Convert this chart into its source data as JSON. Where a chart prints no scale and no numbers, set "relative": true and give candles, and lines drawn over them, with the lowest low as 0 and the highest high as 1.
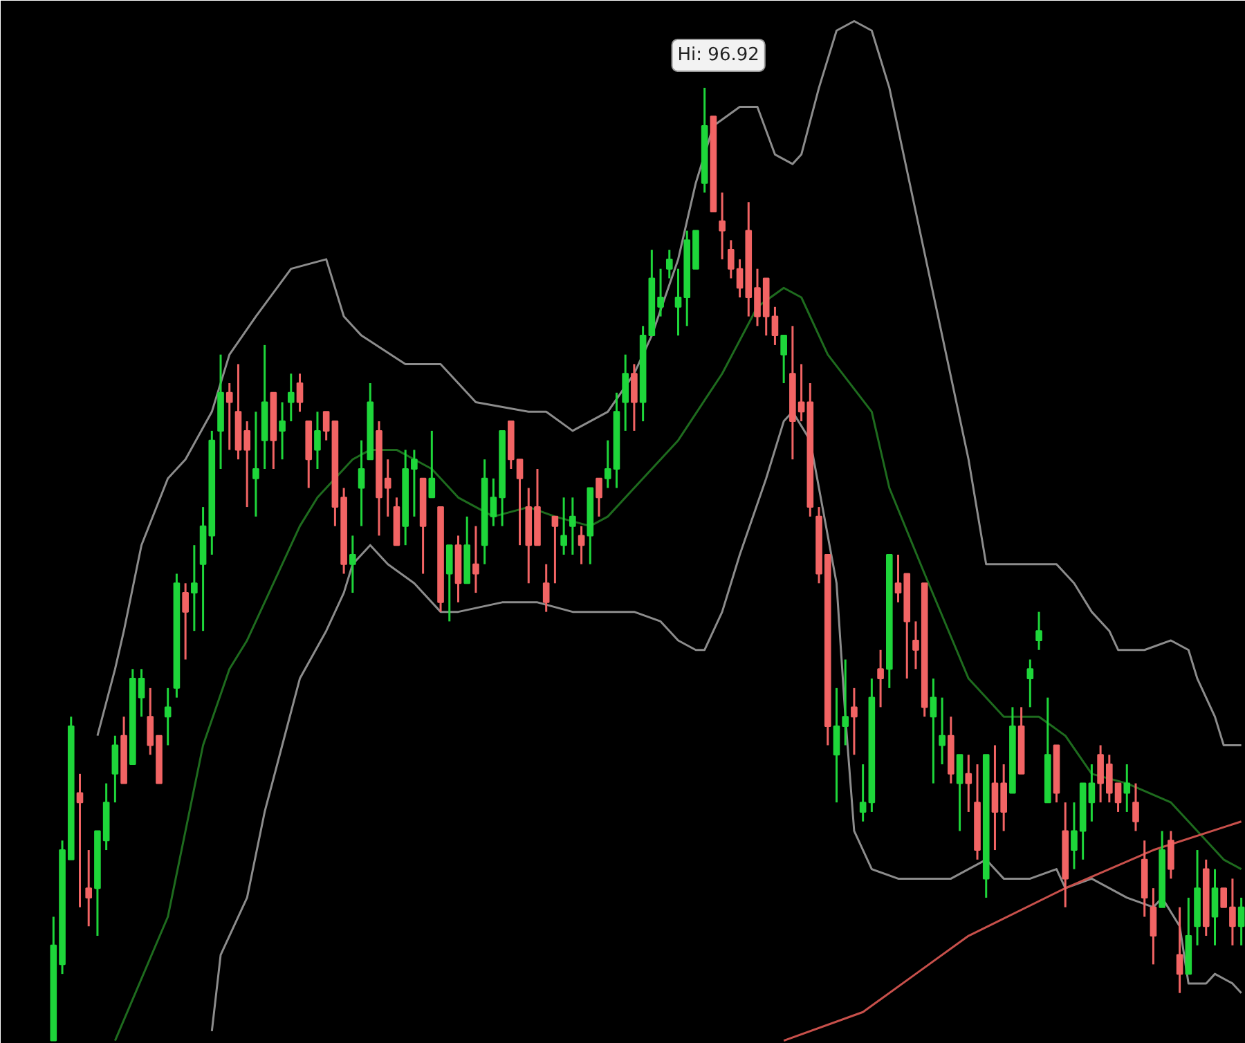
{
  "chart_data": {
    "type": "candlestick",
    "relative": true,
    "categories": [
      null,
      null,
      null,
      null,
      null,
      null,
      null,
      null,
      null,
      null,
      null,
      null,
      null,
      null,
      null,
      null,
      null,
      null,
      null,
      null,
      null,
      null,
      null,
      null,
      null,
      null,
      null,
      null,
      null,
      null,
      null,
      null,
      null,
      null,
      null,
      null,
      null,
      null,
      null,
      null,
      null,
      null,
      null,
      null,
      null,
      null,
      null,
      null,
      null,
      null,
      null,
      null,
      null,
      null,
      null,
      null,
      null,
      null,
      null,
      null,
      null,
      null,
      null,
      null,
      null,
      null,
      null,
      null,
      null,
      null,
      null,
      null,
      null,
      null,
      null,
      null,
      null,
      null,
      null,
      null,
      null,
      null,
      null,
      null,
      null,
      null,
      null,
      null,
      null,
      null,
      null,
      null,
      null,
      null,
      null,
      null,
      null,
      null,
      null,
      null,
      null,
      null,
      null,
      null,
      null,
      null,
      null,
      null,
      null,
      null,
      null,
      null,
      null,
      null,
      null,
      null,
      null,
      null,
      null,
      null,
      null,
      null,
      null,
      null,
      null,
      null,
      null,
      null,
      null,
      null,
      null,
      null,
      null,
      null,
      null,
      null
    ],
    "colors": [
      "#1ed63a",
      "#1ed63a",
      "#1ed63a",
      "#f26464",
      "#f26464",
      "#1ed63a",
      "#1ed63a",
      "#1ed63a",
      "#f26464",
      "#1ed63a",
      "#1ed63a",
      "#f26464",
      "#f26464",
      "#1ed63a",
      "#1ed63a",
      "#f26464",
      "#1ed63a",
      "#1ed63a",
      "#1ed63a",
      "#1ed63a",
      "#f26464",
      "#f26464",
      "#f26464",
      "#1ed63a",
      "#1ed63a",
      "#f26464",
      "#1ed63a",
      "#1ed63a",
      "#f26464",
      "#f26464",
      "#1ed63a",
      "#f26464",
      "#f26464",
      "#f26464",
      "#1ed63a",
      "#1ed63a",
      "#1ed63a",
      "#f26464",
      "#f26464",
      "#f26464",
      "#1ed63a",
      "#1ed63a",
      "#f26464",
      "#1ed63a",
      "#f26464",
      "#1ed63a",
      "#f26464",
      "#1ed63a",
      "#f26464",
      "#1ed63a",
      "#1ed63a",
      "#1ed63a",
      "#f26464",
      "#f26464",
      "#f26464",
      "#f26464",
      "#f26464",
      "#f26464",
      "#1ed63a",
      "#1ed63a",
      "#f26464",
      "#1ed63a",
      "#f26464",
      "#1ed63a",
      "#1ed63a",
      "#1ed63a",
      "#f26464",
      "#1ed63a",
      "#1ed63a",
      "#1ed63a",
      "#1ed63a",
      "#1ed63a",
      "#1ed63a",
      "#1ed63a",
      "#1ed63a",
      "#f26464",
      "#f26464",
      "#f26464",
      "#f26464",
      "#f26464",
      "#f26464",
      "#f26464",
      "#f26464",
      "#1ed63a",
      "#f26464",
      "#f26464",
      "#f26464",
      "#f26464",
      "#f26464",
      "#1ed63a",
      "#1ed63a",
      "#f26464",
      "#1ed63a",
      "#1ed63a",
      "#f26464",
      "#1ed63a",
      "#f26464",
      "#f26464",
      "#f26464",
      "#f26464",
      "#1ed63a",
      "#1ed63a",
      "#f26464",
      "#1ed63a",
      "#f26464",
      "#f26464",
      "#1ed63a",
      "#f26464",
      "#f26464",
      "#1ed63a",
      "#f26464",
      "#1ed63a",
      "#1ed63a",
      "#1ed63a",
      "#f26464",
      "#f26464",
      "#1ed63a",
      "#1ed63a",
      "#1ed63a",
      "#f26464",
      "#f26464",
      "#f26464",
      "#1ed63a",
      "#f26464",
      "#f26464",
      "#f26464",
      "#1ed63a",
      "#f26464",
      "#f26464",
      "#1ed63a",
      "#1ed63a",
      "#f26464",
      "#1ed63a",
      "#f26464",
      "#f26464",
      "#1ed63a"
    ],
    "ohlc": [
      [
        0,
        0.13,
        0,
        0.1
      ],
      [
        0.08,
        0.21,
        0.07,
        0.2
      ],
      [
        0.19,
        0.34,
        0.19,
        0.33
      ],
      [
        0.26,
        0.28,
        0.14,
        0.25
      ],
      [
        0.16,
        0.2,
        0.12,
        0.15
      ],
      [
        0.16,
        0.22,
        0.11,
        0.22
      ],
      [
        0.21,
        0.27,
        0.2,
        0.25
      ],
      [
        0.28,
        0.32,
        0.25,
        0.31
      ],
      [
        0.32,
        0.34,
        0.27,
        0.27
      ],
      [
        0.29,
        0.39,
        0.29,
        0.38
      ],
      [
        0.36,
        0.39,
        0.34,
        0.38
      ],
      [
        0.34,
        0.37,
        0.3,
        0.31
      ],
      [
        0.32,
        0.32,
        0.27,
        0.27
      ],
      [
        0.34,
        0.37,
        0.31,
        0.35
      ],
      [
        0.37,
        0.49,
        0.36,
        0.48
      ],
      [
        0.47,
        0.48,
        0.4,
        0.45
      ],
      [
        0.47,
        0.52,
        0.43,
        0.48
      ],
      [
        0.5,
        0.56,
        0.43,
        0.54
      ],
      [
        0.53,
        0.64,
        0.51,
        0.63
      ],
      [
        0.64,
        0.72,
        0.6,
        0.68
      ],
      [
        0.68,
        0.69,
        0.62,
        0.67
      ],
      [
        0.66,
        0.71,
        0.61,
        0.62
      ],
      [
        0.64,
        0.65,
        0.56,
        0.62
      ],
      [
        0.59,
        0.66,
        0.55,
        0.6
      ],
      [
        0.63,
        0.73,
        0.6,
        0.67
      ],
      [
        0.68,
        0.68,
        0.6,
        0.63
      ],
      [
        0.64,
        0.67,
        0.61,
        0.65
      ],
      [
        0.67,
        0.7,
        0.65,
        0.68
      ],
      [
        0.69,
        0.7,
        0.66,
        0.67
      ],
      [
        0.65,
        0.65,
        0.58,
        0.61
      ],
      [
        0.62,
        0.66,
        0.6,
        0.64
      ],
      [
        0.66,
        0.66,
        0.63,
        0.64
      ],
      [
        0.65,
        0.65,
        0.54,
        0.56
      ],
      [
        0.57,
        0.58,
        0.49,
        0.5
      ],
      [
        0.5,
        0.53,
        0.47,
        0.51
      ],
      [
        0.58,
        0.63,
        0.54,
        0.6
      ],
      [
        0.61,
        0.69,
        0.61,
        0.67
      ],
      [
        0.64,
        0.65,
        0.53,
        0.57
      ],
      [
        0.59,
        0.61,
        0.55,
        0.58
      ],
      [
        0.56,
        0.57,
        0.52,
        0.52
      ],
      [
        0.54,
        0.62,
        0.52,
        0.6
      ],
      [
        0.6,
        0.62,
        0.55,
        0.61
      ],
      [
        0.59,
        0.59,
        0.49,
        0.54
      ],
      [
        0.57,
        0.64,
        0.57,
        0.59
      ],
      [
        0.56,
        0.56,
        0.45,
        0.46
      ],
      [
        0.49,
        0.52,
        0.44,
        0.52
      ],
      [
        0.52,
        0.53,
        0.46,
        0.48
      ],
      [
        0.48,
        0.55,
        0.48,
        0.52
      ],
      [
        0.5,
        0.54,
        0.47,
        0.49
      ],
      [
        0.52,
        0.61,
        0.5,
        0.59
      ],
      [
        0.55,
        0.59,
        0.54,
        0.57
      ],
      [
        0.57,
        0.64,
        0.54,
        0.64
      ],
      [
        0.65,
        0.65,
        0.6,
        0.61
      ],
      [
        0.61,
        0.61,
        0.52,
        0.59
      ],
      [
        0.56,
        0.58,
        0.48,
        0.52
      ],
      [
        0.56,
        0.6,
        0.52,
        0.52
      ],
      [
        0.48,
        0.5,
        0.45,
        0.46
      ],
      [
        0.55,
        0.55,
        0.48,
        0.54
      ],
      [
        0.52,
        0.57,
        0.51,
        0.53
      ],
      [
        0.54,
        0.57,
        0.51,
        0.55
      ],
      [
        0.53,
        0.54,
        0.5,
        0.52
      ],
      [
        0.53,
        0.58,
        0.5,
        0.58
      ],
      [
        0.59,
        0.59,
        0.55,
        0.57
      ],
      [
        0.59,
        0.63,
        0.58,
        0.6
      ],
      [
        0.6,
        0.68,
        0.58,
        0.66
      ],
      [
        0.67,
        0.72,
        0.64,
        0.7
      ],
      [
        0.7,
        0.71,
        0.64,
        0.67
      ],
      [
        0.67,
        0.75,
        0.65,
        0.74
      ],
      [
        0.74,
        0.83,
        0.74,
        0.8
      ],
      [
        0.77,
        0.81,
        0.76,
        0.78
      ],
      [
        0.81,
        0.83,
        0.8,
        0.82
      ],
      [
        0.77,
        0.81,
        0.74,
        0.78
      ],
      [
        0.78,
        0.85,
        0.75,
        0.84
      ],
      [
        0.81,
        0.85,
        0.81,
        0.85
      ],
      [
        0.9,
        1.0,
        0.89,
        0.96
      ],
      [
        0.97,
        0.97,
        0.87,
        0.87
      ],
      [
        0.86,
        0.89,
        0.82,
        0.85
      ],
      [
        0.83,
        0.84,
        0.8,
        0.81
      ],
      [
        0.81,
        0.82,
        0.78,
        0.79
      ],
      [
        0.85,
        0.88,
        0.76,
        0.78
      ],
      [
        0.79,
        0.81,
        0.75,
        0.76
      ],
      [
        0.8,
        0.8,
        0.74,
        0.76
      ],
      [
        0.76,
        0.77,
        0.73,
        0.74
      ],
      [
        0.72,
        0.74,
        0.69,
        0.74
      ],
      [
        0.7,
        0.75,
        0.61,
        0.65
      ],
      [
        0.67,
        0.71,
        0.65,
        0.66
      ],
      [
        0.67,
        0.69,
        0.55,
        0.56
      ],
      [
        0.55,
        0.56,
        0.48,
        0.49
      ],
      [
        0.51,
        0.51,
        0.31,
        0.33
      ],
      [
        0.3,
        0.37,
        0.25,
        0.33
      ],
      [
        0.33,
        0.4,
        0.31,
        0.34
      ],
      [
        0.35,
        0.37,
        0.3,
        0.34
      ],
      [
        0.24,
        0.29,
        0.23,
        0.25
      ],
      [
        0.25,
        0.38,
        0.24,
        0.36
      ],
      [
        0.39,
        0.41,
        0.35,
        0.38
      ],
      [
        0.39,
        0.51,
        0.37,
        0.51
      ],
      [
        0.48,
        0.51,
        0.46,
        0.47
      ],
      [
        0.49,
        0.49,
        0.38,
        0.44
      ],
      [
        0.42,
        0.44,
        0.39,
        0.41
      ],
      [
        0.48,
        0.48,
        0.34,
        0.35
      ],
      [
        0.34,
        0.38,
        0.27,
        0.36
      ],
      [
        0.31,
        0.36,
        0.29,
        0.32
      ],
      [
        0.32,
        0.34,
        0.27,
        0.28
      ],
      [
        0.27,
        0.3,
        0.22,
        0.3
      ],
      [
        0.28,
        0.3,
        0.24,
        0.27
      ],
      [
        0.25,
        0.29,
        0.19,
        0.2
      ],
      [
        0.17,
        0.3,
        0.15,
        0.3
      ],
      [
        0.27,
        0.31,
        0.2,
        0.24
      ],
      [
        0.27,
        0.29,
        0.22,
        0.24
      ],
      [
        0.26,
        0.35,
        0.26,
        0.33
      ],
      [
        0.33,
        0.35,
        0.28,
        0.28
      ],
      [
        0.38,
        0.4,
        0.35,
        0.39
      ],
      [
        0.42,
        0.45,
        0.41,
        0.43
      ],
      [
        0.25,
        0.36,
        0.25,
        0.3
      ],
      [
        0.31,
        0.31,
        0.25,
        0.26
      ],
      [
        0.22,
        0.25,
        0.14,
        0.17
      ],
      [
        0.2,
        0.25,
        0.18,
        0.22
      ],
      [
        0.22,
        0.27,
        0.19,
        0.27
      ],
      [
        0.25,
        0.29,
        0.23,
        0.27
      ],
      [
        0.3,
        0.31,
        0.25,
        0.27
      ],
      [
        0.29,
        0.3,
        0.25,
        0.26
      ],
      [
        0.27,
        0.27,
        0.24,
        0.25
      ],
      [
        0.26,
        0.29,
        0.24,
        0.27
      ],
      [
        0.25,
        0.27,
        0.22,
        0.23
      ],
      [
        0.19,
        0.21,
        0.13,
        0.15
      ],
      [
        0.14,
        0.16,
        0.08,
        0.11
      ],
      [
        0.14,
        0.22,
        0.14,
        0.2
      ],
      [
        0.21,
        0.22,
        0.17,
        0.18
      ],
      [
        0.09,
        0.14,
        0.05,
        0.07
      ],
      [
        0.07,
        0.15,
        0.07,
        0.11
      ],
      [
        0.12,
        0.2,
        0.1,
        0.16
      ],
      [
        0.18,
        0.19,
        0.11,
        0.12
      ],
      [
        0.13,
        0.18,
        0.1,
        0.16
      ],
      [
        0.16,
        0.16,
        0.14,
        0.14
      ],
      [
        0.14,
        0.17,
        0.1,
        0.12
      ],
      [
        0.12,
        0.15,
        0.1,
        0.14
      ]
    ],
    "series": [
      {
        "type": "line",
        "color": "#8c8c8c",
        "values": [
          null,
          null,
          null,
          null,
          null,
          0.32,
          null,
          0.39,
          0.43,
          null,
          0.52,
          null,
          null,
          0.59,
          null,
          0.61,
          null,
          null,
          0.66,
          null,
          0.72,
          null,
          null,
          0.76,
          null,
          null,
          null,
          0.81,
          null,
          null,
          null,
          0.82,
          null,
          0.76,
          null,
          0.74,
          null,
          null,
          null,
          null,
          0.71,
          null,
          null,
          null,
          0.71,
          null,
          null,
          null,
          0.67,
          null,
          null,
          null,
          null,
          null,
          0.66,
          null,
          0.66,
          null,
          null,
          0.64,
          null,
          null,
          null,
          0.66,
          null,
          null,
          0.7,
          null,
          0.74,
          null,
          null,
          0.82,
          null,
          0.9,
          null,
          0.96,
          null,
          null,
          0.98,
          null,
          0.98,
          null,
          0.93,
          null,
          0.92,
          0.93,
          null,
          1.0,
          null,
          1.06,
          null,
          1.07,
          null,
          1.06,
          null,
          1.0,
          null,
          null,
          0.87,
          null,
          null,
          0.74,
          null,
          null,
          0.61,
          null,
          0.5,
          null,
          null,
          0.5,
          null,
          0.5,
          null,
          null,
          0.5,
          null,
          0.48,
          null,
          0.45,
          null,
          0.43,
          0.41,
          null,
          null,
          0.41,
          null,
          null,
          0.42,
          null,
          0.41,
          0.38,
          null,
          0.34,
          0.31,
          null,
          0.31
        ]
      },
      {
        "type": "line",
        "color": "#8c8c8c",
        "values": [
          null,
          null,
          null,
          null,
          null,
          null,
          null,
          null,
          null,
          null,
          null,
          null,
          null,
          null,
          null,
          null,
          null,
          null,
          0.01,
          0.09,
          null,
          null,
          0.15,
          null,
          0.24,
          null,
          0.31,
          null,
          0.38,
          null,
          null,
          0.43,
          null,
          0.47,
          0.5,
          null,
          0.52,
          null,
          0.5,
          null,
          null,
          0.48,
          null,
          null,
          0.45,
          null,
          0.45,
          null,
          null,
          null,
          null,
          0.46,
          null,
          null,
          null,
          0.46,
          null,
          null,
          null,
          0.45,
          null,
          null,
          null,
          0.45,
          null,
          null,
          0.45,
          null,
          null,
          0.44,
          null,
          0.42,
          null,
          0.41,
          0.41,
          null,
          0.45,
          null,
          0.51,
          null,
          null,
          0.59,
          null,
          0.65,
          0.66,
          null,
          0.63,
          null,
          0.53,
          0.48,
          0.34,
          0.22,
          null,
          0.18,
          null,
          null,
          0.17,
          null,
          null,
          0.17,
          null,
          null,
          0.17,
          null,
          0.18,
          null,
          0.19,
          null,
          0.17,
          null,
          null,
          0.17,
          null,
          null,
          0.18,
          0.16,
          null,
          null,
          0.17,
          null,
          0.16,
          null,
          0.15,
          null,
          null,
          0.14,
          0.15,
          null,
          0.12,
          0.06,
          null,
          0.06,
          0.07,
          null,
          0.06,
          0.05
        ]
      },
      {
        "type": "line",
        "color": "#1e6b1e",
        "values": [
          null,
          null,
          null,
          null,
          null,
          null,
          null,
          0.0,
          null,
          null,
          null,
          null,
          null,
          0.13,
          null,
          null,
          null,
          0.31,
          null,
          null,
          0.39,
          null,
          0.42,
          null,
          null,
          null,
          null,
          null,
          0.54,
          null,
          0.57,
          null,
          null,
          0.6,
          0.61,
          null,
          0.62,
          null,
          null,
          0.62,
          null,
          0.61,
          null,
          0.6,
          null,
          null,
          0.57,
          null,
          null,
          null,
          0.55,
          null,
          null,
          null,
          0.56,
          null,
          null,
          0.55,
          null,
          null,
          null,
          0.54,
          null,
          0.55,
          null,
          null,
          0.58,
          null,
          null,
          null,
          null,
          0.63,
          null,
          null,
          null,
          null,
          0.7,
          null,
          null,
          null,
          0.77,
          null,
          null,
          0.79,
          null,
          0.78,
          null,
          null,
          0.72,
          null,
          null,
          null,
          null,
          0.66,
          null,
          0.58,
          null,
          null,
          null,
          0.49,
          null,
          null,
          null,
          null,
          0.38,
          null,
          null,
          null,
          0.34,
          null,
          null,
          null,
          0.34,
          null,
          null,
          0.32,
          null,
          null,
          0.28,
          null,
          null,
          null,
          0.27,
          null,
          null,
          null,
          null,
          0.25,
          null,
          null,
          0.22,
          null,
          null,
          0.19,
          null,
          0.18
        ]
      },
      {
        "type": "line",
        "color": "#c8504b",
        "values": [
          null,
          null,
          null,
          null,
          null,
          null,
          null,
          null,
          null,
          null,
          null,
          null,
          null,
          null,
          null,
          null,
          null,
          null,
          null,
          null,
          null,
          null,
          null,
          null,
          null,
          null,
          null,
          null,
          null,
          null,
          null,
          null,
          null,
          null,
          null,
          null,
          null,
          null,
          null,
          null,
          null,
          null,
          null,
          null,
          null,
          null,
          null,
          null,
          null,
          null,
          null,
          null,
          null,
          null,
          null,
          null,
          null,
          null,
          null,
          null,
          null,
          null,
          null,
          null,
          null,
          null,
          null,
          null,
          null,
          null,
          null,
          null,
          null,
          null,
          null,
          null,
          null,
          null,
          null,
          null,
          null,
          null,
          null,
          0.0,
          null,
          null,
          null,
          null,
          null,
          null,
          null,
          null,
          0.03,
          null,
          null,
          null,
          null,
          null,
          0.07,
          null,
          null,
          null,
          null,
          null,
          0.11,
          null,
          null,
          null,
          null,
          null,
          null,
          null,
          null,
          null,
          null,
          0.16,
          null,
          null,
          null,
          null,
          null,
          null,
          null,
          null,
          null,
          0.2,
          null,
          null,
          null,
          null,
          null,
          null,
          null,
          null,
          null,
          0.23
        ]
      }
    ],
    "annotations": [
      "Hi: 96.92"
    ]
  }
}
